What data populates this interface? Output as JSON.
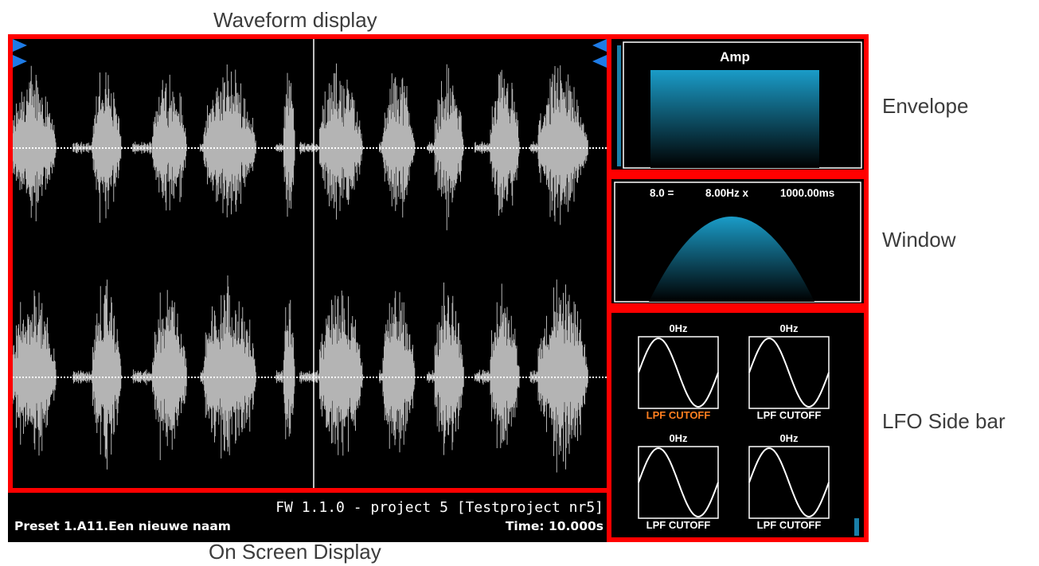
{
  "annotations": {
    "waveform_display": "Waveform display",
    "envelope": "Envelope",
    "window": "Window",
    "lfo_side_bar": "LFO Side bar",
    "on_screen_display": "On Screen Display"
  },
  "envelope": {
    "label": "Amp"
  },
  "window": {
    "ratio": "8.0 =",
    "frequency": "8.00Hz x",
    "duration": "1000.00ms"
  },
  "lfos": [
    {
      "rate": "0Hz",
      "target": "LPF CUTOFF",
      "target_color": "#ff7f1f",
      "selected": true
    },
    {
      "rate": "0Hz",
      "target": "LPF CUTOFF",
      "target_color": "#ffffff",
      "selected": false
    },
    {
      "rate": "0Hz",
      "target": "LPF CUTOFF",
      "target_color": "#ffffff",
      "selected": false
    },
    {
      "rate": "0Hz",
      "target": "LPF CUTOFF",
      "target_color": "#ffffff",
      "selected": false
    }
  ],
  "osd": {
    "firmware_line": "FW 1.1.0 - project 5 [Testproject nr5]",
    "preset": "Preset 1.A11.Een nieuwe naam",
    "time": "Time: 10.000s"
  },
  "colors": {
    "highlight": "#ff0000",
    "waveform": "#b4b4b4",
    "gradient_top": "#1a9cc8",
    "marker": "#1e7be6",
    "lfo_selected": "#ff7f1f"
  },
  "icons": [
    "loop-start-marker-icon",
    "loop-end-marker-icon"
  ]
}
